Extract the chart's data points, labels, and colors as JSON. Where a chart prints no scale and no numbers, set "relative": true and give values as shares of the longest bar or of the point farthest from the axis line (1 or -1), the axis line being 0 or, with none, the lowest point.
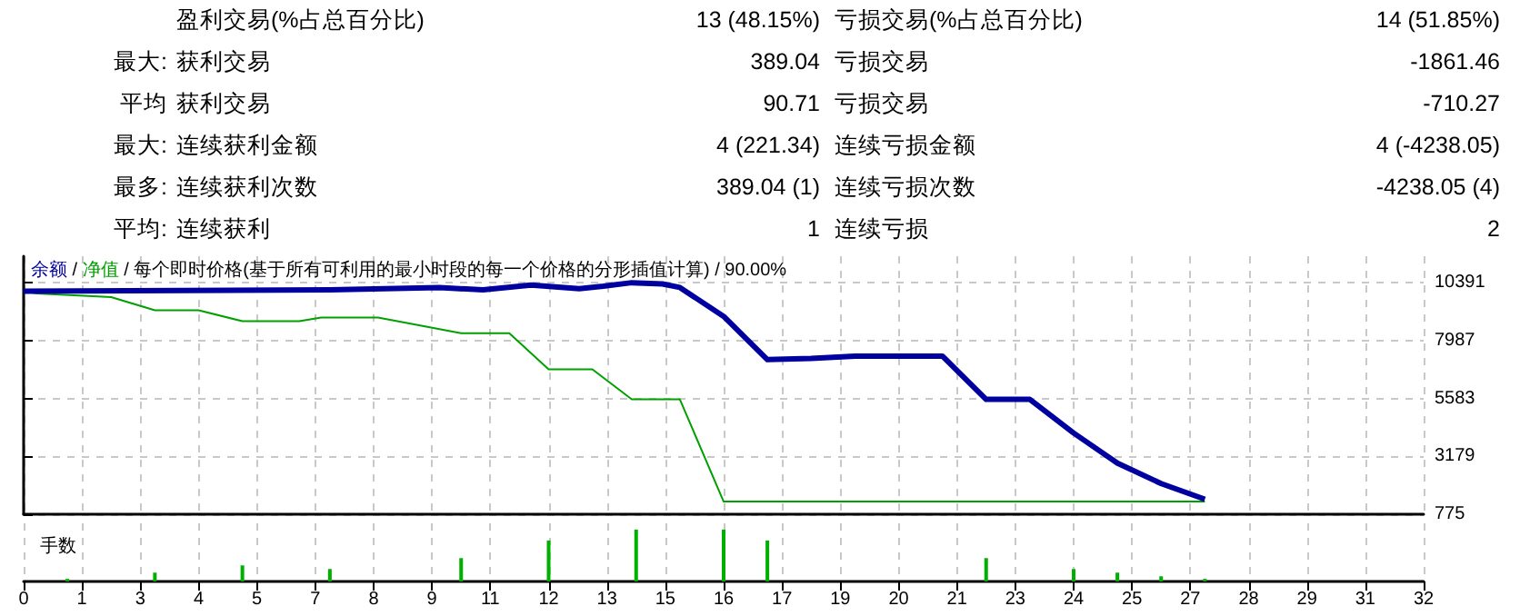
{
  "chart_data": [
    {
      "type": "other",
      "annotations": [
        "盈利交易(%占总百分比)",
        "13 (48.15%)",
        "亏损交易(%占总百分比)",
        "14 (51.85%)",
        "最大:",
        "获利交易",
        "389.04",
        "亏损交易",
        "-1861.46",
        "平均",
        "获利交易",
        "90.71",
        "亏损交易",
        "-710.27",
        "最大:",
        "连续获利金额",
        "4 (221.34)",
        "连续亏损金额",
        "4 (-4238.05)",
        "最多:",
        "连续获利次数",
        "389.04 (1)",
        "连续亏损次数",
        "-4238.05 (4)",
        "平均:",
        "连续获利",
        "1",
        "连续亏损",
        "2"
      ]
    },
    {
      "type": "line",
      "subtitle": "/ 每个即时价格(基于所有可利用的最小时段的每一个价格的分形插值计算) / 90.00%",
      "annotations": [
        "/"
      ],
      "legend": "top left",
      "grid": true,
      "tick_labels": "y",
      "xlim": [
        0,
        32
      ],
      "xticks": [
        {
          "value": 0,
          "label": null
        },
        {
          "value": 1.333,
          "label": null
        },
        {
          "value": 2.667,
          "label": null
        },
        {
          "value": 4,
          "label": null
        },
        {
          "value": 5.333,
          "label": null
        },
        {
          "value": 6.667,
          "label": null
        },
        {
          "value": 8,
          "label": null
        },
        {
          "value": 9.333,
          "label": null
        },
        {
          "value": 10.667,
          "label": null
        },
        {
          "value": 12,
          "label": null
        },
        {
          "value": 13.333,
          "label": null
        },
        {
          "value": 14.667,
          "label": null
        },
        {
          "value": 16,
          "label": null
        },
        {
          "value": 17.333,
          "label": null
        },
        {
          "value": 18.667,
          "label": null
        },
        {
          "value": 20,
          "label": null
        },
        {
          "value": 21.333,
          "label": null
        },
        {
          "value": 22.667,
          "label": null
        },
        {
          "value": 24,
          "label": null
        },
        {
          "value": 25.333,
          "label": null
        },
        {
          "value": 26.667,
          "label": null
        },
        {
          "value": 28,
          "label": null
        },
        {
          "value": 29.333,
          "label": null
        },
        {
          "value": 30.667,
          "label": null
        },
        {
          "value": 32,
          "label": null
        }
      ],
      "ylim": [
        775,
        11500
      ],
      "yticks": [
        775,
        3179,
        5583,
        7987,
        10391
      ],
      "series": [
        {
          "name": "余额",
          "color": "#0000a0",
          "x": [
            0,
            7,
            9.5,
            10.5,
            11.6,
            12.7,
            13.25,
            13.9,
            14.6,
            15,
            16,
            17,
            18,
            19,
            21,
            22,
            23,
            24,
            25,
            26,
            27
          ],
          "values": [
            10050,
            10100,
            10200,
            10100,
            10300,
            10150,
            10250,
            10400,
            10350,
            10200,
            9000,
            7200,
            7250,
            7350,
            7350,
            5550,
            5550,
            4150,
            2900,
            2050,
            1400
          ]
        },
        {
          "name": "净值",
          "color": "#00a000",
          "x": [
            0,
            0.3,
            2,
            3,
            4,
            5,
            6.3,
            6.8,
            8.1,
            10,
            11.1,
            12,
            13,
            13.9,
            15,
            16,
            27
          ],
          "values": [
            10050,
            9950,
            9800,
            9250,
            9250,
            8800,
            8800,
            8950,
            8950,
            8300,
            8300,
            6800,
            6800,
            5550,
            5550,
            1300,
            1300
          ]
        }
      ]
    },
    {
      "type": "bar",
      "title": "手数",
      "relative": true,
      "color": "#00b000",
      "grid": "x",
      "tick_labels": "x",
      "xlim": [
        0,
        32
      ],
      "xticks": [
        0,
        {
          "value": 1.333,
          "label": "1"
        },
        {
          "value": 2.667,
          "label": "3"
        },
        4,
        {
          "value": 5.333,
          "label": "5"
        },
        {
          "value": 6.667,
          "label": "7"
        },
        8,
        {
          "value": 9.333,
          "label": "9"
        },
        {
          "value": 10.667,
          "label": "11"
        },
        12,
        {
          "value": 13.333,
          "label": "13"
        },
        {
          "value": 14.667,
          "label": "15"
        },
        16,
        {
          "value": 17.333,
          "label": "17"
        },
        {
          "value": 18.667,
          "label": "19"
        },
        20,
        {
          "value": 21.333,
          "label": "21"
        },
        {
          "value": 22.667,
          "label": "23"
        },
        24,
        {
          "value": 25.333,
          "label": "25"
        },
        {
          "value": 26.667,
          "label": "27"
        },
        28,
        {
          "value": 29.333,
          "label": "29"
        },
        {
          "value": 30.667,
          "label": "31"
        },
        32
      ],
      "x": [
        1,
        3,
        5,
        7,
        10,
        12,
        14,
        16,
        17,
        22,
        24,
        25,
        26,
        27
      ],
      "values": [
        0.05,
        0.17,
        0.31,
        0.24,
        0.45,
        0.79,
        1,
        1,
        0.79,
        0.45,
        0.24,
        0.17,
        0.1,
        0.05
      ]
    }
  ]
}
